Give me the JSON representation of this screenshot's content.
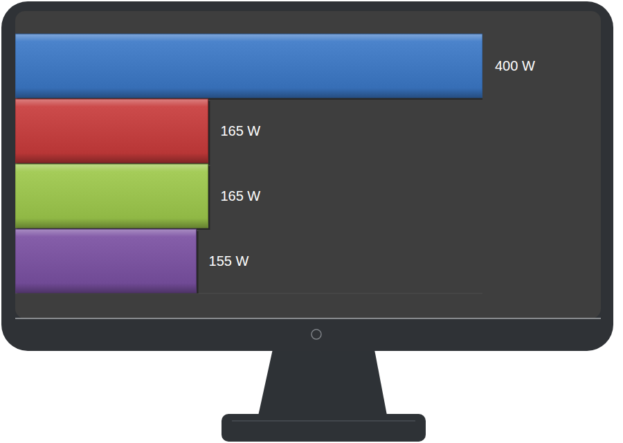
{
  "chart_data": {
    "type": "bar",
    "orientation": "horizontal",
    "categories": [
      null,
      null,
      null,
      null
    ],
    "values": [
      400,
      165,
      165,
      155
    ],
    "value_labels": [
      "400 W",
      "165 W",
      "165 W",
      "155 W"
    ],
    "colors": [
      "#3b78c6",
      "#c83b3b",
      "#9dc84b",
      "#7a50a2"
    ],
    "xlim": [
      0,
      400
    ],
    "data_labels": true,
    "tick_labels": false,
    "grid": false
  }
}
